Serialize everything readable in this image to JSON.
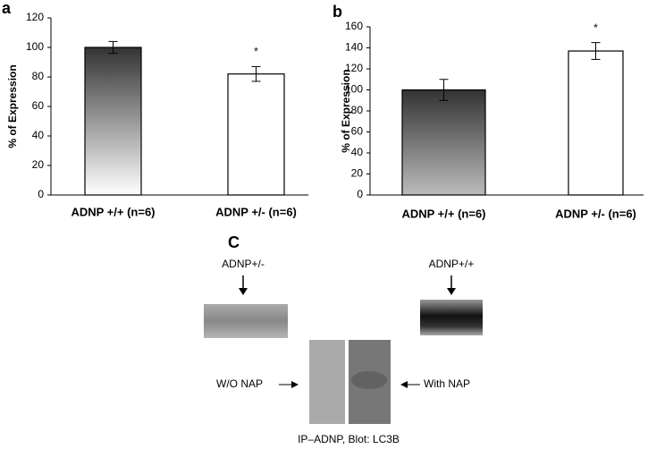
{
  "chart_data": [
    {
      "type": "bar",
      "panel": "a",
      "ylabel": "% of Expression",
      "categories": [
        "ADNP +/+ (n=6)",
        "ADNP +/- (n=6)"
      ],
      "values": [
        100,
        82
      ],
      "errors": [
        4,
        5
      ],
      "colors": [
        "#333333",
        "#ffffff"
      ],
      "annotation": "*",
      "ylim": [
        0,
        120
      ],
      "yticks": [
        0,
        20,
        40,
        60,
        80,
        100,
        120
      ]
    },
    {
      "type": "bar",
      "panel": "b",
      "ylabel": "% of Expression",
      "categories": [
        "ADNP +/+ (n=6)",
        "ADNP +/- (n=6)"
      ],
      "values": [
        100,
        137
      ],
      "errors": [
        10,
        8
      ],
      "colors": [
        "#333333",
        "#ffffff"
      ],
      "annotation": "*",
      "ylim": [
        0,
        160
      ],
      "yticks": [
        0,
        20,
        40,
        60,
        80,
        100,
        120,
        140,
        160
      ]
    }
  ],
  "panel_c": {
    "label": "C",
    "left_label": "ADNP+/-",
    "right_label": "ADNP+/+",
    "without": "W/O NAP",
    "with": "With NAP",
    "caption": "IP–ADNP, Blot: LC3B"
  }
}
